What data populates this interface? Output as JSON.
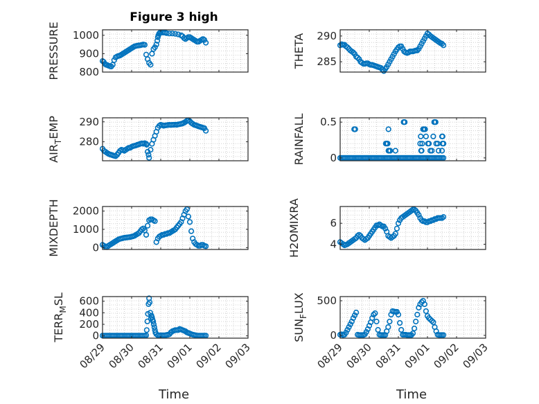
{
  "figure": {
    "title": "Figure 3 high",
    "xlabel": "Time",
    "x_ticks": [
      "08/29",
      "08/30",
      "08/31",
      "09/01",
      "09/02",
      "09/03"
    ],
    "colors": {
      "marker": "#0072BD",
      "grid": "#d0d0d0",
      "axis": "#262626",
      "background": "#ffffff"
    }
  },
  "chart_data": [
    {
      "type": "scatter",
      "id": "pressure",
      "ylabel": "PRESSURE",
      "ylim": [
        800,
        1030
      ],
      "yticks": [
        800,
        900,
        1000
      ],
      "grid": true,
      "x": [
        0.0,
        0.04,
        0.08,
        0.12,
        0.16,
        0.2,
        0.25,
        0.3,
        0.35,
        0.4,
        0.45,
        0.5,
        0.55,
        0.6,
        0.65,
        0.7,
        0.75,
        0.8,
        0.85,
        0.9,
        0.95,
        1.0,
        1.05,
        1.1,
        1.15,
        1.2,
        1.25,
        1.3,
        1.35,
        1.4,
        1.45,
        1.5,
        1.55,
        1.6,
        1.65,
        1.7,
        1.75,
        1.8,
        1.85,
        1.88,
        1.9,
        1.92,
        1.94,
        1.96,
        1.98,
        2.0,
        2.05,
        2.1,
        2.15,
        2.2,
        2.3,
        2.4,
        2.5,
        2.6,
        2.7,
        2.75,
        2.8,
        2.85,
        2.9,
        2.95,
        3.0,
        3.05,
        3.1,
        3.15,
        3.2,
        3.25,
        3.3,
        3.35,
        3.4,
        3.45,
        3.5,
        3.55
      ],
      "y": [
        860,
        855,
        845,
        840,
        838,
        835,
        832,
        830,
        840,
        865,
        880,
        885,
        888,
        890,
        895,
        900,
        905,
        910,
        915,
        920,
        925,
        930,
        935,
        940,
        942,
        944,
        945,
        946,
        948,
        950,
        948,
        895,
        870,
        850,
        840,
        900,
        925,
        935,
        950,
        970,
        990,
        1000,
        1008,
        1012,
        1015,
        1015,
        1015,
        1015,
        1015,
        1012,
        1010,
        1010,
        1008,
        1005,
        1000,
        995,
        985,
        980,
        985,
        990,
        990,
        985,
        980,
        975,
        970,
        965,
        965,
        970,
        975,
        980,
        975,
        960
      ]
    },
    {
      "type": "scatter",
      "id": "theta",
      "ylabel": "THETA",
      "ylim": [
        283,
        291.2
      ],
      "yticks": [
        285,
        290
      ],
      "grid": true,
      "x": [
        0.0,
        0.05,
        0.1,
        0.15,
        0.2,
        0.25,
        0.3,
        0.35,
        0.4,
        0.45,
        0.5,
        0.55,
        0.6,
        0.65,
        0.7,
        0.75,
        0.8,
        0.85,
        0.9,
        0.95,
        1.0,
        1.05,
        1.1,
        1.15,
        1.2,
        1.25,
        1.3,
        1.35,
        1.4,
        1.45,
        1.5,
        1.55,
        1.6,
        1.65,
        1.7,
        1.75,
        1.8,
        1.85,
        1.9,
        1.95,
        2.0,
        2.05,
        2.1,
        2.15,
        2.2,
        2.25,
        2.3,
        2.35,
        2.4,
        2.45,
        2.5,
        2.55,
        2.6,
        2.65,
        2.7,
        2.75,
        2.8,
        2.85,
        2.9,
        2.95,
        3.0,
        3.05,
        3.1,
        3.15,
        3.2,
        3.25,
        3.3,
        3.35,
        3.4,
        3.45,
        3.5,
        3.55
      ],
      "y": [
        288.2,
        288.4,
        288.3,
        288.3,
        288,
        287.8,
        287.5,
        287.2,
        287,
        286.8,
        286.5,
        286,
        285.8,
        285.5,
        285,
        284.8,
        284.6,
        284.6,
        284.7,
        284.7,
        284.5,
        284.4,
        284.4,
        284.3,
        284.2,
        284.1,
        284,
        283.9,
        283.8,
        283.5,
        283.2,
        283.6,
        284,
        284.5,
        285,
        285.5,
        286,
        286.5,
        287,
        287.4,
        287.8,
        288,
        288,
        287.5,
        287,
        286.8,
        286.7,
        286.8,
        287,
        287,
        287,
        287.1,
        287.2,
        287.2,
        287.5,
        288,
        288.5,
        289,
        289.5,
        290,
        290.5,
        290.3,
        290,
        289.8,
        289.6,
        289.4,
        289.2,
        289,
        288.8,
        288.6,
        288.5,
        288.2
      ]
    },
    {
      "type": "scatter",
      "id": "air_temp",
      "ylabel": "AIR_TEMP",
      "ylim": [
        270.5,
        292
      ],
      "yticks": [
        280,
        290
      ],
      "grid": true,
      "x": [
        0.0,
        0.05,
        0.1,
        0.15,
        0.2,
        0.25,
        0.3,
        0.35,
        0.4,
        0.45,
        0.5,
        0.55,
        0.6,
        0.65,
        0.7,
        0.75,
        0.8,
        0.85,
        0.9,
        0.95,
        1.0,
        1.05,
        1.1,
        1.15,
        1.2,
        1.25,
        1.3,
        1.35,
        1.4,
        1.45,
        1.5,
        1.52,
        1.55,
        1.58,
        1.6,
        1.65,
        1.7,
        1.75,
        1.8,
        1.85,
        1.9,
        1.95,
        2.0,
        2.05,
        2.1,
        2.15,
        2.2,
        2.25,
        2.3,
        2.35,
        2.4,
        2.45,
        2.5,
        2.55,
        2.6,
        2.65,
        2.7,
        2.75,
        2.8,
        2.85,
        2.9,
        2.95,
        3.0,
        3.05,
        3.1,
        3.15,
        3.2,
        3.25,
        3.3,
        3.35,
        3.4,
        3.45,
        3.5,
        3.55
      ],
      "y": [
        276.5,
        275.5,
        275,
        274.5,
        274,
        273.7,
        273.5,
        273.2,
        273,
        272.8,
        273.5,
        274.5,
        275.5,
        276,
        275.8,
        275.5,
        276,
        276.5,
        277,
        277,
        277.5,
        277.8,
        278,
        278.2,
        278.5,
        278.7,
        279,
        279.2,
        279,
        279.3,
        279,
        278.5,
        275,
        273.5,
        272,
        276,
        279,
        281,
        283,
        285,
        287,
        288,
        288.5,
        288.3,
        288,
        288.2,
        288.3,
        288.4,
        288.5,
        288.4,
        288.5,
        288.5,
        288.6,
        288.5,
        288.7,
        288.8,
        289,
        289.2,
        289.5,
        290,
        290.5,
        290.8,
        290.3,
        289.5,
        289,
        288.5,
        288.3,
        288,
        287.7,
        287.5,
        287.3,
        287,
        286.8,
        285.5
      ]
    },
    {
      "type": "scatter",
      "id": "rainfall",
      "ylabel": "RAINFALL",
      "ylim": [
        -0.04,
        0.56
      ],
      "yticks": [
        0,
        0.5
      ],
      "grid": true,
      "x": [
        0.0,
        0.05,
        0.1,
        0.15,
        0.2,
        0.25,
        0.3,
        0.35,
        0.4,
        0.45,
        0.5,
        0.55,
        0.6,
        0.65,
        0.7,
        0.75,
        0.8,
        0.85,
        0.9,
        0.95,
        1.0,
        1.05,
        1.1,
        1.15,
        1.2,
        1.25,
        1.3,
        1.35,
        1.4,
        1.45,
        1.5,
        1.55,
        1.6,
        1.65,
        1.7,
        1.75,
        1.8,
        1.85,
        1.9,
        1.95,
        2.0,
        2.05,
        2.1,
        2.15,
        2.2,
        2.25,
        2.3,
        2.35,
        2.4,
        2.45,
        2.5,
        2.55,
        2.6,
        2.65,
        2.7,
        2.75,
        2.8,
        2.85,
        2.9,
        2.95,
        3.0,
        3.05,
        3.1,
        3.15,
        3.2,
        3.25,
        3.3,
        3.35,
        3.4,
        3.45,
        3.5,
        3.55,
        0.48,
        0.52,
        1.57,
        1.6,
        1.63,
        1.66,
        1.66,
        1.68,
        1.72,
        1.9,
        2.18,
        2.2,
        2.22,
        2.75,
        2.77,
        2.78,
        2.8,
        2.82,
        2.85,
        2.88,
        2.92,
        2.95,
        3.02,
        3.05,
        3.1,
        3.15,
        3.2,
        3.23,
        3.25,
        3.28,
        3.3,
        3.35,
        3.38,
        3.5,
        3.5,
        3.52,
        3.52,
        3.55
      ],
      "y": [
        0,
        0,
        0,
        0,
        0,
        0,
        0,
        0,
        0,
        0,
        0,
        0,
        0,
        0,
        0,
        0,
        0,
        0,
        0,
        0,
        0,
        0,
        0,
        0,
        0,
        0,
        0,
        0,
        0,
        0,
        0,
        0,
        0,
        0,
        0,
        0,
        0,
        0,
        0,
        0,
        0,
        0,
        0,
        0,
        0,
        0,
        0,
        0,
        0,
        0,
        0,
        0,
        0,
        0,
        0,
        0,
        0,
        0,
        0,
        0,
        0,
        0,
        0,
        0,
        0,
        0,
        0,
        0,
        0,
        0,
        0,
        0,
        0.4,
        0.4,
        0.2,
        0.2,
        0.2,
        0.1,
        0.4,
        0.1,
        0.1,
        0.1,
        0.5,
        0.5,
        0.5,
        0.2,
        0.3,
        0.1,
        0.1,
        0.2,
        0.4,
        0.4,
        0.4,
        0.3,
        0.2,
        0.2,
        0.1,
        0.1,
        0.3,
        0.5,
        0.5,
        0.5,
        0.2,
        0.2,
        0.1,
        0.1,
        0.3,
        0.3,
        0.2,
        0.2
      ]
    },
    {
      "type": "scatter",
      "id": "mixdepth",
      "ylabel": "MIXDEPTH",
      "ylim": [
        -100,
        2250
      ],
      "yticks": [
        0,
        1000,
        2000
      ],
      "grid": true,
      "x": [
        0.0,
        0.05,
        0.1,
        0.15,
        0.2,
        0.25,
        0.3,
        0.35,
        0.4,
        0.45,
        0.5,
        0.55,
        0.6,
        0.65,
        0.7,
        0.75,
        0.8,
        0.85,
        0.9,
        0.95,
        1.0,
        1.05,
        1.1,
        1.15,
        1.2,
        1.25,
        1.3,
        1.35,
        1.4,
        1.45,
        1.5,
        1.55,
        1.6,
        1.65,
        1.7,
        1.75,
        1.8,
        1.85,
        1.9,
        1.95,
        2.0,
        2.05,
        2.1,
        2.15,
        2.2,
        2.25,
        2.3,
        2.35,
        2.4,
        2.45,
        2.5,
        2.55,
        2.6,
        2.65,
        2.7,
        2.75,
        2.8,
        2.85,
        2.9,
        2.95,
        3.0,
        3.05,
        3.1,
        3.15,
        3.2,
        3.25,
        3.3,
        3.35,
        3.4,
        3.45,
        3.5,
        3.55
      ],
      "y": [
        150,
        100,
        50,
        30,
        100,
        150,
        200,
        250,
        300,
        350,
        400,
        450,
        480,
        500,
        520,
        540,
        550,
        560,
        570,
        580,
        600,
        620,
        650,
        700,
        750,
        800,
        900,
        1000,
        1050,
        950,
        700,
        1200,
        1500,
        1550,
        1550,
        1500,
        1450,
        300,
        500,
        600,
        650,
        700,
        700,
        750,
        750,
        800,
        800,
        850,
        900,
        950,
        1000,
        1100,
        1200,
        1300,
        1400,
        1600,
        1800,
        2000,
        2100,
        1700,
        1400,
        900,
        500,
        300,
        200,
        150,
        100,
        100,
        150,
        150,
        100,
        80
      ]
    },
    {
      "type": "scatter",
      "id": "h2omixra",
      "ylabel": "H2OMIXRA",
      "ylim": [
        3.5,
        7.6
      ],
      "yticks": [
        4,
        6
      ],
      "grid": true,
      "x": [
        0.0,
        0.05,
        0.1,
        0.15,
        0.2,
        0.25,
        0.3,
        0.35,
        0.4,
        0.45,
        0.5,
        0.55,
        0.6,
        0.65,
        0.7,
        0.75,
        0.8,
        0.85,
        0.9,
        0.95,
        1.0,
        1.05,
        1.1,
        1.15,
        1.2,
        1.25,
        1.3,
        1.35,
        1.4,
        1.45,
        1.5,
        1.55,
        1.6,
        1.65,
        1.7,
        1.75,
        1.8,
        1.85,
        1.9,
        1.95,
        2.0,
        2.05,
        2.1,
        2.15,
        2.2,
        2.25,
        2.3,
        2.35,
        2.4,
        2.45,
        2.5,
        2.55,
        2.6,
        2.65,
        2.7,
        2.75,
        2.8,
        2.85,
        2.9,
        2.95,
        3.0,
        3.05,
        3.1,
        3.15,
        3.2,
        3.25,
        3.3,
        3.35,
        3.4,
        3.45,
        3.5,
        3.55
      ],
      "y": [
        4.2,
        4.1,
        4.0,
        3.9,
        3.95,
        4.0,
        4.1,
        4.2,
        4.3,
        4.4,
        4.5,
        4.6,
        4.8,
        4.9,
        4.8,
        4.6,
        4.5,
        4.4,
        4.5,
        4.6,
        4.8,
        5.0,
        5.2,
        5.4,
        5.6,
        5.8,
        5.8,
        5.9,
        5.8,
        5.7,
        5.7,
        5.5,
        5.2,
        4.8,
        4.7,
        4.6,
        4.7,
        4.8,
        5.0,
        5.5,
        6.0,
        6.3,
        6.5,
        6.6,
        6.7,
        6.8,
        6.9,
        7.0,
        7.1,
        7.2,
        7.3,
        7.3,
        7.2,
        7.0,
        6.8,
        6.5,
        6.3,
        6.2,
        6.2,
        6.1,
        6.1,
        6.2,
        6.2,
        6.3,
        6.3,
        6.4,
        6.4,
        6.5,
        6.5,
        6.5,
        6.5,
        6.6
      ]
    },
    {
      "type": "scatter",
      "id": "terr_msl",
      "ylabel": "TERR_MSL",
      "ylim": [
        -40,
        680
      ],
      "yticks": [
        0,
        200,
        400,
        600
      ],
      "grid": true,
      "x": [
        0.0,
        0.05,
        0.1,
        0.15,
        0.2,
        0.25,
        0.3,
        0.35,
        0.4,
        0.45,
        0.5,
        0.55,
        0.6,
        0.65,
        0.7,
        0.75,
        0.8,
        0.85,
        0.9,
        0.95,
        1.0,
        1.05,
        1.1,
        1.15,
        1.2,
        1.25,
        1.3,
        1.35,
        1.4,
        1.45,
        1.5,
        1.52,
        1.54,
        1.56,
        1.58,
        1.6,
        1.62,
        1.64,
        1.66,
        1.68,
        1.7,
        1.72,
        1.74,
        1.76,
        1.78,
        1.8,
        1.82,
        1.85,
        1.9,
        1.95,
        2.0,
        2.05,
        2.1,
        2.15,
        2.2,
        2.25,
        2.3,
        2.35,
        2.4,
        2.45,
        2.5,
        2.55,
        2.6,
        2.65,
        2.7,
        2.75,
        2.8,
        2.85,
        2.9,
        2.95,
        3.0,
        3.05,
        3.1,
        3.15,
        3.2,
        3.25,
        3.3,
        3.35,
        3.4,
        3.45,
        3.5,
        3.55
      ],
      "y": [
        5,
        5,
        5,
        5,
        5,
        5,
        5,
        5,
        5,
        5,
        5,
        5,
        5,
        5,
        5,
        5,
        5,
        5,
        5,
        5,
        5,
        5,
        5,
        5,
        5,
        5,
        5,
        5,
        5,
        5,
        10,
        100,
        250,
        380,
        550,
        650,
        580,
        400,
        300,
        350,
        320,
        280,
        250,
        200,
        150,
        100,
        60,
        30,
        10,
        10,
        10,
        10,
        10,
        10,
        15,
        20,
        30,
        60,
        80,
        90,
        100,
        100,
        100,
        120,
        110,
        100,
        90,
        80,
        60,
        50,
        40,
        30,
        20,
        15,
        10,
        5,
        5,
        5,
        5,
        5,
        5,
        5
      ]
    },
    {
      "type": "scatter",
      "id": "sun_flux",
      "ylabel": "SUN_FLUX",
      "ylim": [
        -40,
        560
      ],
      "yticks": [
        0,
        500
      ],
      "grid": true,
      "x": [
        0.0,
        0.05,
        0.1,
        0.15,
        0.2,
        0.25,
        0.3,
        0.35,
        0.4,
        0.45,
        0.5,
        0.55,
        0.6,
        0.65,
        0.7,
        0.75,
        0.8,
        0.85,
        0.9,
        0.95,
        1.0,
        1.05,
        1.1,
        1.15,
        1.2,
        1.25,
        1.3,
        1.35,
        1.4,
        1.45,
        1.5,
        1.55,
        1.6,
        1.65,
        1.7,
        1.75,
        1.8,
        1.85,
        1.9,
        1.95,
        2.0,
        2.05,
        2.1,
        2.15,
        2.2,
        2.25,
        2.3,
        2.35,
        2.4,
        2.45,
        2.5,
        2.55,
        2.6,
        2.65,
        2.7,
        2.75,
        2.8,
        2.85,
        2.9,
        2.95,
        3.0,
        3.05,
        3.1,
        3.15,
        3.2,
        3.25,
        3.3,
        3.35,
        3.4,
        3.45,
        3.5,
        3.55
      ],
      "y": [
        10,
        15,
        5,
        10,
        40,
        80,
        120,
        160,
        200,
        250,
        290,
        330,
        10,
        5,
        5,
        5,
        5,
        15,
        50,
        90,
        140,
        190,
        250,
        300,
        320,
        200,
        80,
        10,
        5,
        5,
        5,
        5,
        60,
        120,
        200,
        300,
        350,
        345,
        340,
        340,
        300,
        180,
        80,
        10,
        10,
        10,
        5,
        5,
        5,
        5,
        30,
        100,
        200,
        300,
        400,
        450,
        480,
        500,
        450,
        350,
        280,
        250,
        230,
        210,
        190,
        120,
        60,
        10,
        5,
        5,
        5,
        5
      ]
    }
  ]
}
